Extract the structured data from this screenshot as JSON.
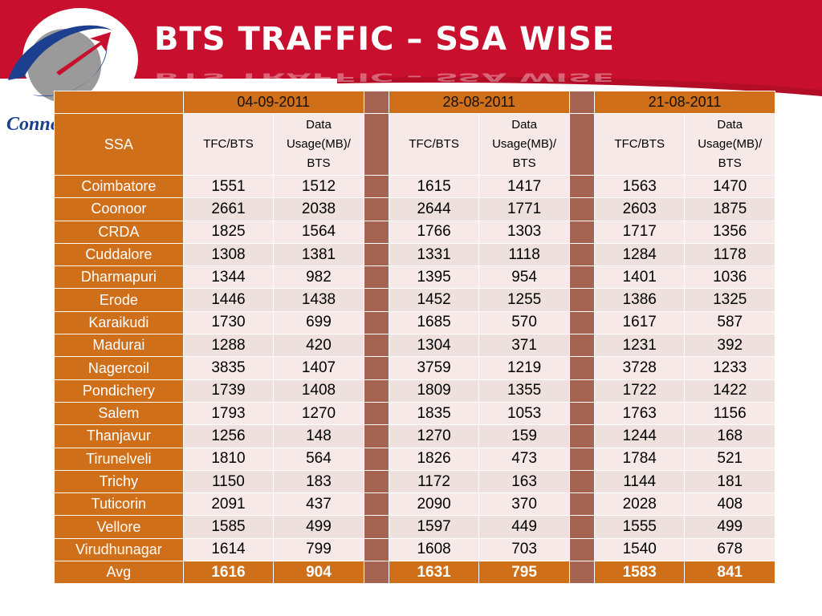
{
  "slide": {
    "title": "BTS TRAFFIC – SSA WISE",
    "logo_text": "Conne",
    "colors": {
      "header_red": "#c8102e",
      "table_orange": "#d06f1a",
      "gap_brown": "#a56452",
      "cell_bg": "#f6e9e7"
    }
  },
  "table": {
    "ssa_header": "SSA",
    "dates": [
      "04-09-2011",
      "28-08-2011",
      "21-08-2011"
    ],
    "col1_label": "TFC/BTS",
    "col2_label": "Data Usage(MB)/ BTS",
    "rows": [
      {
        "ssa": "Coimbatore",
        "v": [
          "1551",
          "1512",
          "1615",
          "1417",
          "1563",
          "1470"
        ]
      },
      {
        "ssa": "Coonoor",
        "v": [
          "2661",
          "2038",
          "2644",
          "1771",
          "2603",
          "1875"
        ]
      },
      {
        "ssa": "CRDA",
        "v": [
          "1825",
          "1564",
          "1766",
          "1303",
          "1717",
          "1356"
        ]
      },
      {
        "ssa": "Cuddalore",
        "v": [
          "1308",
          "1381",
          "1331",
          "1118",
          "1284",
          "1178"
        ]
      },
      {
        "ssa": "Dharmapuri",
        "v": [
          "1344",
          "982",
          "1395",
          "954",
          "1401",
          "1036"
        ]
      },
      {
        "ssa": "Erode",
        "v": [
          "1446",
          "1438",
          "1452",
          "1255",
          "1386",
          "1325"
        ]
      },
      {
        "ssa": "Karaikudi",
        "v": [
          "1730",
          "699",
          "1685",
          "570",
          "1617",
          "587"
        ]
      },
      {
        "ssa": "Madurai",
        "v": [
          "1288",
          "420",
          "1304",
          "371",
          "1231",
          "392"
        ]
      },
      {
        "ssa": "Nagercoil",
        "v": [
          "3835",
          "1407",
          "3759",
          "1219",
          "3728",
          "1233"
        ]
      },
      {
        "ssa": "Pondichery",
        "v": [
          "1739",
          "1408",
          "1809",
          "1355",
          "1722",
          "1422"
        ]
      },
      {
        "ssa": "Salem",
        "v": [
          "1793",
          "1270",
          "1835",
          "1053",
          "1763",
          "1156"
        ]
      },
      {
        "ssa": "Thanjavur",
        "v": [
          "1256",
          "148",
          "1270",
          "159",
          "1244",
          "168"
        ]
      },
      {
        "ssa": "Tirunelveli",
        "v": [
          "1810",
          "564",
          "1826",
          "473",
          "1784",
          "521"
        ]
      },
      {
        "ssa": "Trichy",
        "v": [
          "1150",
          "183",
          "1172",
          "163",
          "1144",
          "181"
        ]
      },
      {
        "ssa": "Tuticorin",
        "v": [
          "2091",
          "437",
          "2090",
          "370",
          "2028",
          "408"
        ]
      },
      {
        "ssa": "Vellore",
        "v": [
          "1585",
          "499",
          "1597",
          "449",
          "1555",
          "499"
        ]
      },
      {
        "ssa": "Virudhunagar",
        "v": [
          "1614",
          "799",
          "1608",
          "703",
          "1540",
          "678"
        ]
      }
    ],
    "avg": {
      "ssa": "Avg",
      "v": [
        "1616",
        "904",
        "1631",
        "795",
        "1583",
        "841"
      ]
    }
  }
}
